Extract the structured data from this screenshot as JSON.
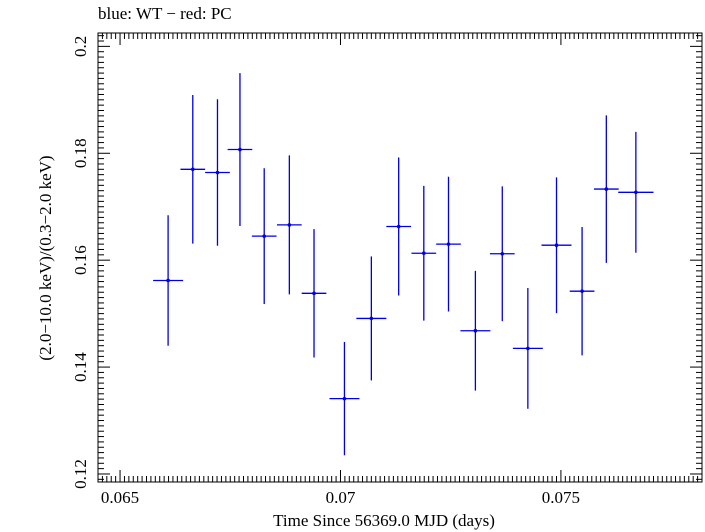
{
  "chart_data": {
    "type": "scatter",
    "title": "blue: WT − red: PC",
    "xlabel": "Time Since 56369.0 MJD (days)",
    "ylabel": "(2.0−10.0 keV)/(0.3−2.0 keV)",
    "xlim": [
      0.0645,
      0.0782
    ],
    "ylim": [
      0.1185,
      0.2025
    ],
    "x_ticks": [
      0.065,
      0.07,
      0.075
    ],
    "x_tick_labels": [
      "0.065",
      "0.07",
      "0.075"
    ],
    "y_ticks": [
      0.12,
      0.14,
      0.16,
      0.18,
      0.2
    ],
    "y_tick_labels": [
      "0.12",
      "0.14",
      "0.16",
      "0.18",
      "0.2"
    ],
    "grid": false,
    "series": [
      {
        "color": "#0000e6",
        "points": [
          {
            "x": 0.06609,
            "xerr": 0.00034,
            "y": 0.1562,
            "yerr": 0.0122
          },
          {
            "x": 0.06665,
            "xerr": 0.00028,
            "y": 0.177,
            "yerr": 0.0139
          },
          {
            "x": 0.06721,
            "xerr": 0.00028,
            "y": 0.1764,
            "yerr": 0.0137
          },
          {
            "x": 0.06772,
            "xerr": 0.00028,
            "y": 0.1807,
            "yerr": 0.0143
          },
          {
            "x": 0.06827,
            "xerr": 0.00028,
            "y": 0.1645,
            "yerr": 0.0127
          },
          {
            "x": 0.06884,
            "xerr": 0.00028,
            "y": 0.1666,
            "yerr": 0.013
          },
          {
            "x": 0.0694,
            "xerr": 0.00028,
            "y": 0.1538,
            "yerr": 0.012
          },
          {
            "x": 0.07009,
            "xerr": 0.00034,
            "y": 0.1341,
            "yerr": 0.0106
          },
          {
            "x": 0.0707,
            "xerr": 0.00034,
            "y": 0.1491,
            "yerr": 0.0116
          },
          {
            "x": 0.07132,
            "xerr": 0.00028,
            "y": 0.1663,
            "yerr": 0.0129
          },
          {
            "x": 0.07189,
            "xerr": 0.00028,
            "y": 0.1613,
            "yerr": 0.0126
          },
          {
            "x": 0.07245,
            "xerr": 0.00028,
            "y": 0.163,
            "yerr": 0.0126
          },
          {
            "x": 0.07306,
            "xerr": 0.00034,
            "y": 0.1468,
            "yerr": 0.0112
          },
          {
            "x": 0.07367,
            "xerr": 0.00028,
            "y": 0.1612,
            "yerr": 0.0126
          },
          {
            "x": 0.07425,
            "xerr": 0.00034,
            "y": 0.1435,
            "yerr": 0.0113
          },
          {
            "x": 0.0749,
            "xerr": 0.00034,
            "y": 0.1628,
            "yerr": 0.0127
          },
          {
            "x": 0.07548,
            "xerr": 0.00028,
            "y": 0.1542,
            "yerr": 0.012
          },
          {
            "x": 0.07603,
            "xerr": 0.00028,
            "y": 0.1733,
            "yerr": 0.0138
          },
          {
            "x": 0.0767,
            "xerr": 0.0004,
            "y": 0.1727,
            "yerr": 0.0113
          }
        ]
      }
    ]
  }
}
